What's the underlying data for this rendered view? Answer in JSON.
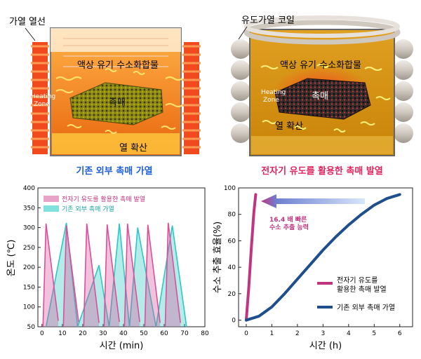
{
  "panel_left": {
    "wire_label": "가열 열선",
    "liquid_label": "액상 유기 수소화합물",
    "heating_zone": [
      "Heating",
      "Zone"
    ],
    "catalyst_label": "촉매",
    "diffusion_label": "열 확산",
    "caption": "기존 외부 촉매 가열",
    "caption_color": "#1f5fd6"
  },
  "panel_right": {
    "coil_label": "유도가열 코일",
    "liquid_label": "액상 유기 수소화합물",
    "heating_zone": [
      "Heating",
      "Zone"
    ],
    "catalyst_label": "촉매",
    "diffusion_label": "열 확산",
    "caption": "전자기 유도를 활용한 촉매 발열",
    "caption_color": "#e0245e"
  },
  "chart_data": [
    {
      "type": "area",
      "xlabel": "시간 (min)",
      "ylabel": "온도 (℃)",
      "xlim": [
        -2,
        80
      ],
      "ylim": [
        50,
        400
      ],
      "xticks": [
        0,
        10,
        20,
        30,
        40,
        50,
        60,
        70,
        80
      ],
      "yticks": [
        50,
        100,
        150,
        200,
        250,
        300,
        350,
        400
      ],
      "legend_position": "top-left",
      "series": [
        {
          "name": "전자기 유도를 활용한 촉매 발열",
          "color": "#d94f9b",
          "x": [
            0.5,
            2,
            8,
            10.5,
            12,
            18,
            20.5,
            22,
            28,
            30.5,
            32,
            38,
            40.5,
            42,
            48,
            50.5,
            52,
            58,
            60.5,
            62,
            68
          ],
          "y": [
            50,
            310,
            65,
            50,
            305,
            62,
            50,
            310,
            60,
            50,
            308,
            62,
            50,
            310,
            62,
            50,
            307,
            60,
            50,
            312,
            60
          ]
        },
        {
          "name": "기존 외부 촉매 가열",
          "color": "#2bc8c4",
          "x": [
            2,
            12,
            17.5,
            17.5,
            28,
            33,
            33,
            38,
            43,
            43,
            47,
            56,
            56,
            64,
            71,
            71,
            76
          ],
          "y": [
            50,
            312,
            50,
            50,
            205,
            50,
            50,
            310,
            50,
            50,
            300,
            50,
            50,
            305,
            50,
            50,
            50
          ]
        }
      ]
    },
    {
      "type": "line",
      "xlabel": "시간 (h)",
      "ylabel": "수소 추출 효율(%)",
      "xlim": [
        -0.3,
        6.5
      ],
      "ylim": [
        -5,
        100
      ],
      "xticks": [
        0,
        1,
        2,
        3,
        4,
        5,
        6
      ],
      "yticks": [
        0,
        20,
        40,
        60,
        80,
        100
      ],
      "legend_position": "bottom-right",
      "annotation": [
        "16.4 배 빠른",
        "수소 추출 능력"
      ],
      "series": [
        {
          "name": "전자기 유도를 활용한 촉매 발열",
          "color": "#c0357f",
          "x": [
            0,
            0.1,
            0.2,
            0.3,
            0.37
          ],
          "y": [
            0,
            25,
            55,
            82,
            95
          ]
        },
        {
          "name": "기존 외부 촉매 가열",
          "color": "#1f4e8c",
          "x": [
            0,
            0.5,
            1,
            1.5,
            2,
            2.5,
            3,
            3.5,
            4,
            4.5,
            5,
            5.5,
            6
          ],
          "y": [
            0,
            3,
            10,
            20,
            31,
            42,
            53,
            63,
            72,
            80,
            87,
            92,
            95
          ]
        }
      ]
    }
  ]
}
